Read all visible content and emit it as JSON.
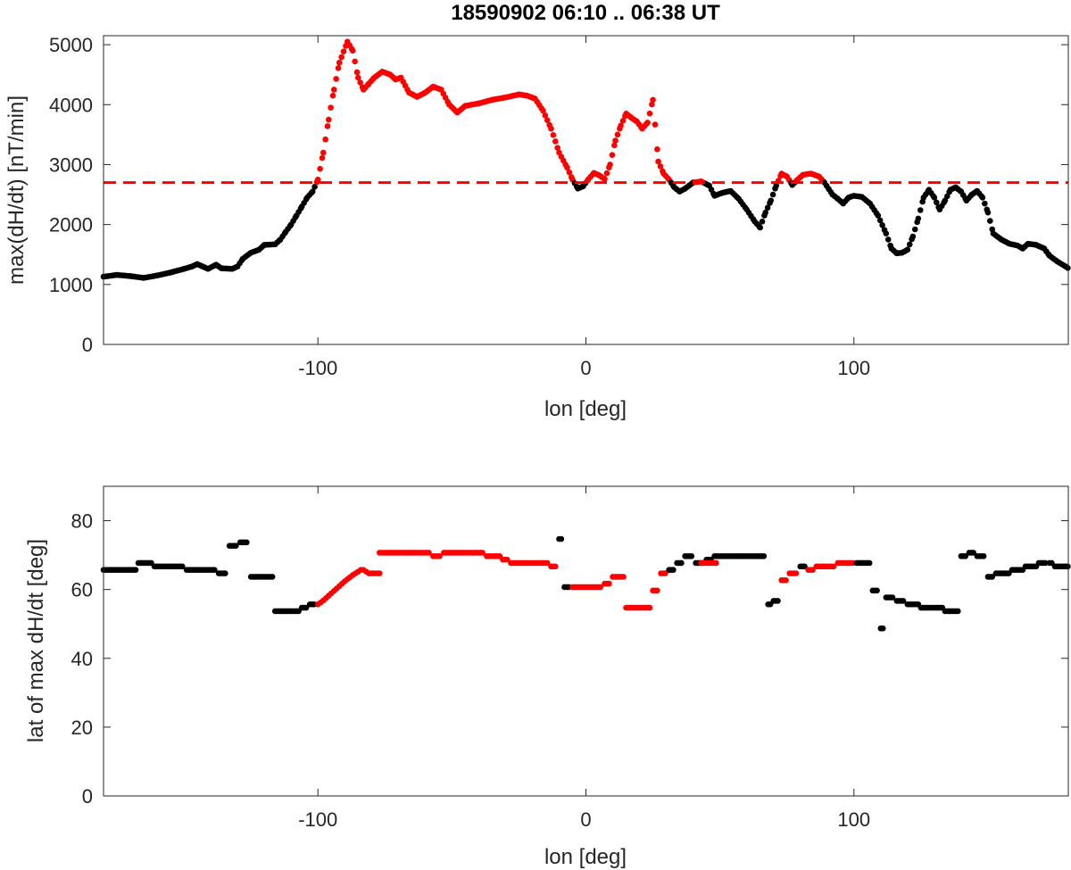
{
  "chart_data": [
    {
      "type": "scatter",
      "title": "18590902 06:10 .. 06:38 UT",
      "xlabel": "lon [deg]",
      "ylabel": "max(dH/dt) [nT/min]",
      "xlim": [
        -180,
        180
      ],
      "ylim": [
        0,
        5150
      ],
      "xticks": [
        -100,
        0,
        100
      ],
      "yticks": [
        0,
        1000,
        2000,
        3000,
        4000,
        5000
      ],
      "threshold": 2700,
      "threshold_style": "dashed",
      "grid": false,
      "colors": {
        "below": "#000000",
        "above": "#ff0000",
        "threshold": "#ff0000"
      },
      "profile": [
        [
          -180,
          1130
        ],
        [
          -175,
          1160
        ],
        [
          -170,
          1140
        ],
        [
          -165,
          1110
        ],
        [
          -160,
          1150
        ],
        [
          -155,
          1200
        ],
        [
          -150,
          1260
        ],
        [
          -147,
          1300
        ],
        [
          -145,
          1340
        ],
        [
          -143,
          1300
        ],
        [
          -141,
          1260
        ],
        [
          -138,
          1330
        ],
        [
          -136,
          1270
        ],
        [
          -132,
          1260
        ],
        [
          -130,
          1300
        ],
        [
          -128,
          1430
        ],
        [
          -125,
          1530
        ],
        [
          -122,
          1580
        ],
        [
          -120,
          1660
        ],
        [
          -116,
          1670
        ],
        [
          -114,
          1750
        ],
        [
          -112,
          1880
        ],
        [
          -110,
          2000
        ],
        [
          -108,
          2150
        ],
        [
          -106,
          2300
        ],
        [
          -104,
          2450
        ],
        [
          -102,
          2550
        ],
        [
          -100,
          2750
        ],
        [
          -98,
          3200
        ],
        [
          -96,
          3750
        ],
        [
          -94,
          4250
        ],
        [
          -92,
          4700
        ],
        [
          -89,
          5050
        ],
        [
          -87,
          4900
        ],
        [
          -85,
          4450
        ],
        [
          -83,
          4250
        ],
        [
          -81,
          4350
        ],
        [
          -79,
          4450
        ],
        [
          -76,
          4550
        ],
        [
          -73,
          4500
        ],
        [
          -71,
          4420
        ],
        [
          -69,
          4450
        ],
        [
          -66,
          4200
        ],
        [
          -63,
          4130
        ],
        [
          -60,
          4200
        ],
        [
          -57,
          4300
        ],
        [
          -54,
          4250
        ],
        [
          -51,
          4000
        ],
        [
          -48,
          3870
        ],
        [
          -45,
          3980
        ],
        [
          -40,
          4020
        ],
        [
          -35,
          4080
        ],
        [
          -30,
          4120
        ],
        [
          -25,
          4170
        ],
        [
          -22,
          4150
        ],
        [
          -19,
          4100
        ],
        [
          -16,
          3900
        ],
        [
          -13,
          3600
        ],
        [
          -10,
          3200
        ],
        [
          -7,
          2950
        ],
        [
          -5,
          2750
        ],
        [
          -3,
          2600
        ],
        [
          -1,
          2640
        ],
        [
          1,
          2760
        ],
        [
          3,
          2860
        ],
        [
          5,
          2820
        ],
        [
          7,
          2760
        ],
        [
          9,
          3000
        ],
        [
          11,
          3400
        ],
        [
          13,
          3650
        ],
        [
          15,
          3850
        ],
        [
          17,
          3780
        ],
        [
          19,
          3720
        ],
        [
          21,
          3600
        ],
        [
          23,
          3700
        ],
        [
          25,
          4080
        ],
        [
          27,
          3050
        ],
        [
          29,
          2850
        ],
        [
          31,
          2750
        ],
        [
          33,
          2620
        ],
        [
          35,
          2550
        ],
        [
          37,
          2600
        ],
        [
          40,
          2700
        ],
        [
          43,
          2720
        ],
        [
          46,
          2650
        ],
        [
          48,
          2480
        ],
        [
          51,
          2530
        ],
        [
          54,
          2560
        ],
        [
          57,
          2430
        ],
        [
          60,
          2250
        ],
        [
          63,
          2050
        ],
        [
          65,
          1950
        ],
        [
          67,
          2200
        ],
        [
          69,
          2400
        ],
        [
          71,
          2650
        ],
        [
          73,
          2850
        ],
        [
          75,
          2800
        ],
        [
          77,
          2660
        ],
        [
          79,
          2750
        ],
        [
          81,
          2830
        ],
        [
          84,
          2850
        ],
        [
          87,
          2800
        ],
        [
          89,
          2700
        ],
        [
          92,
          2500
        ],
        [
          94,
          2430
        ],
        [
          96,
          2350
        ],
        [
          98,
          2450
        ],
        [
          100,
          2480
        ],
        [
          103,
          2460
        ],
        [
          106,
          2350
        ],
        [
          109,
          2150
        ],
        [
          112,
          1850
        ],
        [
          114,
          1600
        ],
        [
          116,
          1520
        ],
        [
          118,
          1530
        ],
        [
          120,
          1580
        ],
        [
          122,
          1800
        ],
        [
          124,
          2100
        ],
        [
          126,
          2450
        ],
        [
          128,
          2580
        ],
        [
          130,
          2450
        ],
        [
          132,
          2250
        ],
        [
          134,
          2400
        ],
        [
          136,
          2580
        ],
        [
          138,
          2620
        ],
        [
          140,
          2550
        ],
        [
          142,
          2400
        ],
        [
          144,
          2500
        ],
        [
          146,
          2560
        ],
        [
          148,
          2450
        ],
        [
          150,
          2200
        ],
        [
          152,
          1850
        ],
        [
          155,
          1750
        ],
        [
          158,
          1680
        ],
        [
          161,
          1650
        ],
        [
          163,
          1600
        ],
        [
          165,
          1680
        ],
        [
          168,
          1660
        ],
        [
          171,
          1600
        ],
        [
          173,
          1480
        ],
        [
          176,
          1380
        ],
        [
          179,
          1300
        ],
        [
          180,
          1270
        ]
      ]
    },
    {
      "type": "scatter",
      "xlabel": "lon [deg]",
      "ylabel": "lat of max dH/dt [deg]",
      "xlim": [
        -180,
        180
      ],
      "ylim": [
        0,
        90
      ],
      "xticks": [
        -100,
        0,
        100
      ],
      "yticks": [
        0,
        20,
        40,
        60,
        80
      ],
      "grid": false,
      "colors": {
        "black": "#000000",
        "red": "#ff0000"
      },
      "segments": [
        {
          "x0": -180,
          "x1": -168,
          "y": 65.7,
          "color": "black"
        },
        {
          "x0": -167,
          "x1": -162,
          "y": 67.7,
          "color": "black"
        },
        {
          "x0": -161,
          "x1": -150,
          "y": 66.7,
          "color": "black"
        },
        {
          "x0": -149,
          "x1": -138,
          "y": 65.7,
          "color": "black"
        },
        {
          "x0": -137,
          "x1": -134,
          "y": 64.7,
          "color": "black"
        },
        {
          "x0": -133,
          "x1": -130,
          "y": 72.7,
          "color": "black"
        },
        {
          "x0": -129,
          "x1": -126,
          "y": 73.7,
          "color": "black"
        },
        {
          "x0": -125,
          "x1": -117,
          "y": 63.7,
          "color": "black"
        },
        {
          "x0": -116,
          "x1": -107,
          "y": 53.7,
          "color": "black"
        },
        {
          "x0": -106,
          "x1": -104,
          "y": 54.7,
          "color": "black"
        },
        {
          "x0": -103,
          "x1": -101,
          "y": 55.7,
          "color": "black"
        },
        {
          "x0": -81,
          "x1": -77,
          "y": 64.7,
          "color": "red"
        },
        {
          "x0": -77,
          "x1": -58,
          "y": 70.7,
          "color": "red"
        },
        {
          "x0": -57,
          "x1": -54,
          "y": 69.7,
          "color": "red"
        },
        {
          "x0": -53,
          "x1": -38,
          "y": 70.7,
          "color": "red"
        },
        {
          "x0": -37,
          "x1": -32,
          "y": 69.7,
          "color": "red"
        },
        {
          "x0": -31,
          "x1": -29,
          "y": 68.7,
          "color": "red"
        },
        {
          "x0": -28,
          "x1": -14,
          "y": 67.7,
          "color": "red"
        },
        {
          "x0": -13,
          "x1": -11,
          "y": 66.7,
          "color": "red"
        },
        {
          "x0": -10,
          "x1": -9,
          "y": 74.7,
          "color": "black"
        },
        {
          "x0": -8,
          "x1": -6,
          "y": 60.7,
          "color": "black"
        },
        {
          "x0": -5,
          "x1": 6,
          "y": 60.7,
          "color": "red"
        },
        {
          "x0": 7,
          "x1": 9,
          "y": 61.7,
          "color": "red"
        },
        {
          "x0": 10,
          "x1": 14,
          "y": 63.7,
          "color": "red"
        },
        {
          "x0": 15,
          "x1": 24,
          "y": 54.7,
          "color": "red"
        },
        {
          "x0": 25,
          "x1": 27,
          "y": 59.7,
          "color": "red"
        },
        {
          "x0": 28,
          "x1": 30,
          "y": 64.7,
          "color": "red"
        },
        {
          "x0": 31,
          "x1": 33,
          "y": 65.7,
          "color": "black"
        },
        {
          "x0": 34,
          "x1": 36,
          "y": 67.7,
          "color": "black"
        },
        {
          "x0": 37,
          "x1": 40,
          "y": 69.7,
          "color": "black"
        },
        {
          "x0": 41,
          "x1": 44,
          "y": 67.7,
          "color": "black"
        },
        {
          "x0": 45,
          "x1": 47,
          "y": 68.7,
          "color": "black"
        },
        {
          "x0": 48,
          "x1": 67,
          "y": 69.7,
          "color": "black"
        },
        {
          "x0": 43,
          "x1": 49,
          "y": 67.7,
          "color": "red"
        },
        {
          "x0": 68,
          "x1": 69,
          "y": 55.7,
          "color": "black"
        },
        {
          "x0": 70,
          "x1": 72,
          "y": 56.7,
          "color": "black"
        },
        {
          "x0": 73,
          "x1": 75,
          "y": 62.7,
          "color": "red"
        },
        {
          "x0": 76,
          "x1": 79,
          "y": 64.7,
          "color": "red"
        },
        {
          "x0": 80,
          "x1": 82,
          "y": 66.7,
          "color": "black"
        },
        {
          "x0": 83,
          "x1": 85,
          "y": 65.7,
          "color": "red"
        },
        {
          "x0": 86,
          "x1": 93,
          "y": 66.7,
          "color": "red"
        },
        {
          "x0": 94,
          "x1": 100,
          "y": 67.7,
          "color": "red"
        },
        {
          "x0": 101,
          "x1": 106,
          "y": 67.7,
          "color": "black"
        },
        {
          "x0": 107,
          "x1": 109,
          "y": 59.7,
          "color": "black"
        },
        {
          "x0": 110,
          "x1": 111,
          "y": 48.7,
          "color": "black"
        },
        {
          "x0": 112,
          "x1": 115,
          "y": 57.7,
          "color": "black"
        },
        {
          "x0": 116,
          "x1": 119,
          "y": 56.7,
          "color": "black"
        },
        {
          "x0": 120,
          "x1": 124,
          "y": 55.7,
          "color": "black"
        },
        {
          "x0": 125,
          "x1": 133,
          "y": 54.7,
          "color": "black"
        },
        {
          "x0": 134,
          "x1": 139,
          "y": 53.7,
          "color": "black"
        },
        {
          "x0": 140,
          "x1": 142,
          "y": 69.7,
          "color": "black"
        },
        {
          "x0": 143,
          "x1": 145,
          "y": 70.7,
          "color": "black"
        },
        {
          "x0": 146,
          "x1": 149,
          "y": 69.7,
          "color": "black"
        },
        {
          "x0": 150,
          "x1": 152,
          "y": 63.7,
          "color": "black"
        },
        {
          "x0": 153,
          "x1": 158,
          "y": 64.7,
          "color": "black"
        },
        {
          "x0": 159,
          "x1": 163,
          "y": 65.7,
          "color": "black"
        },
        {
          "x0": 164,
          "x1": 168,
          "y": 66.7,
          "color": "black"
        },
        {
          "x0": 169,
          "x1": 172,
          "y": 67.7,
          "color": "black"
        },
        {
          "x0": 173,
          "x1": 174,
          "y": 67.7,
          "color": "black"
        },
        {
          "x0": 175,
          "x1": 180,
          "y": 66.7,
          "color": "black"
        }
      ],
      "gradient": [
        [
          -100,
          55.7
        ],
        [
          -99,
          56.2
        ],
        [
          -98,
          56.8
        ],
        [
          -97,
          57.5
        ],
        [
          -96,
          58.2
        ],
        [
          -95,
          58.9
        ],
        [
          -94,
          59.6
        ],
        [
          -93,
          60.3
        ],
        [
          -92,
          61.0
        ],
        [
          -91,
          61.7
        ],
        [
          -90,
          62.4
        ],
        [
          -89,
          63.0
        ],
        [
          -88,
          63.6
        ],
        [
          -87,
          64.2
        ],
        [
          -86,
          64.7
        ],
        [
          -85,
          65.2
        ],
        [
          -84,
          65.7
        ],
        [
          -83,
          65.7
        ],
        [
          -82,
          65.2
        ]
      ]
    }
  ]
}
